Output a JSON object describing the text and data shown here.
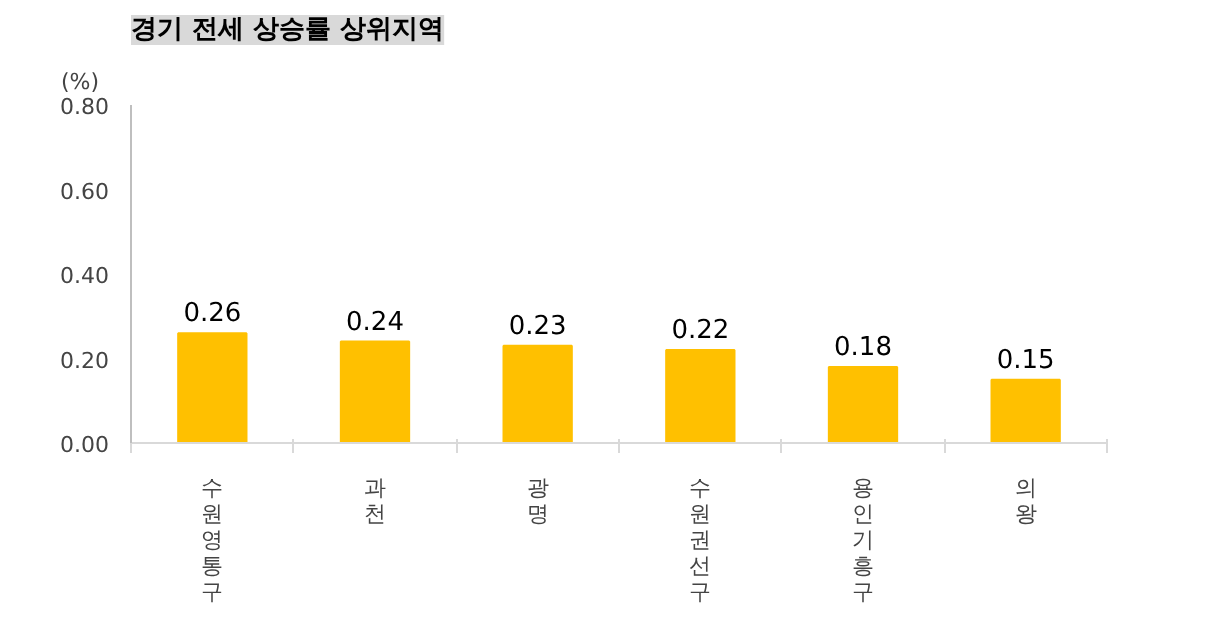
{
  "chart_data": {
    "type": "bar",
    "title": "경기 전세 상승률 상위지역",
    "ylabel": "(%)",
    "categories": [
      "수원 영통구",
      "과천",
      "광명",
      "수원 권선구",
      "용인 기흥구",
      "의왕"
    ],
    "values": [
      0.26,
      0.24,
      0.23,
      0.22,
      0.18,
      0.15
    ],
    "color": "#ffc000",
    "ylim": [
      0,
      0.8
    ],
    "yticks": [
      {
        "value": 0,
        "label": "0.00"
      },
      {
        "value": 0.2,
        "label": "0.20"
      },
      {
        "value": 0.4,
        "label": "0.40"
      },
      {
        "value": 0.6,
        "label": "0.60"
      },
      {
        "value": 0.8,
        "label": "0.80"
      }
    ],
    "data_labels": true,
    "grid": false
  }
}
